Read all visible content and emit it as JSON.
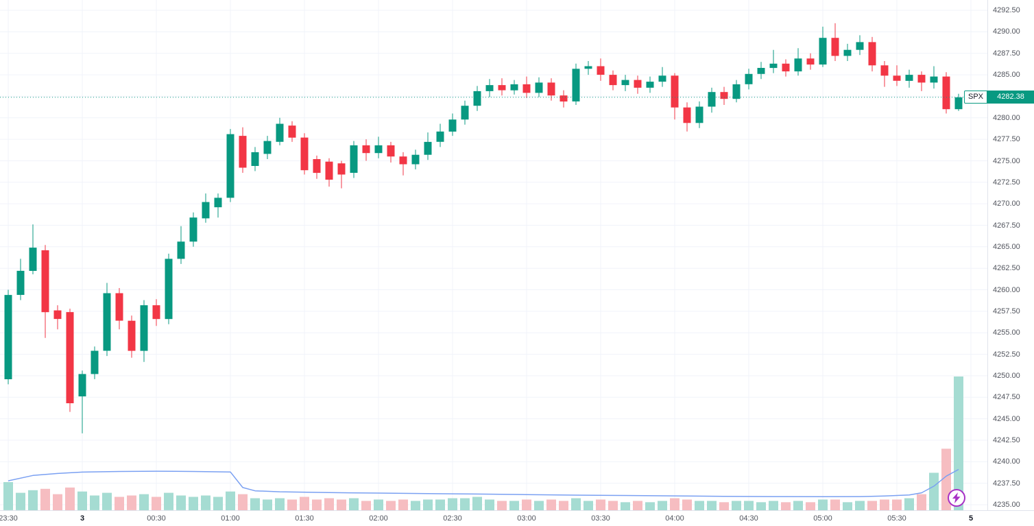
{
  "meta": {
    "symbol": "SPX",
    "last_price_text": "4282.38"
  },
  "price_axis": {
    "labels": [
      "4292.50",
      "4290.00",
      "4287.50",
      "4285.00",
      "4282.50",
      "4280.00",
      "4277.50",
      "4275.00",
      "4272.50",
      "4270.00",
      "4267.50",
      "4265.00",
      "4262.50",
      "4260.00",
      "4257.50",
      "4255.00",
      "4252.50",
      "4250.00",
      "4247.50",
      "4245.00",
      "4242.50",
      "4240.00",
      "4237.50",
      "4235.00"
    ]
  },
  "chart_data": {
    "type": "candlestick",
    "title": "SPX",
    "bar_interval_minutes": 5,
    "ylim": [
      4234.36,
      4293.7
    ],
    "grid": true,
    "price_ticks": [
      4292.5,
      4290,
      4287.5,
      4285,
      4282.5,
      4280,
      4277.5,
      4275,
      4272.5,
      4270,
      4267.5,
      4265,
      4262.5,
      4260,
      4257.5,
      4255,
      4252.5,
      4250,
      4247.5,
      4245,
      4242.5,
      4240,
      4237.5,
      4235
    ],
    "x_labels": [
      {
        "text": "23:30",
        "bar": 0
      },
      {
        "text": "3",
        "bar": 6,
        "strong": true
      },
      {
        "text": "00:30",
        "bar": 12
      },
      {
        "text": "01:00",
        "bar": 18
      },
      {
        "text": "01:30",
        "bar": 24
      },
      {
        "text": "02:00",
        "bar": 30
      },
      {
        "text": "02:30",
        "bar": 36
      },
      {
        "text": "03:00",
        "bar": 42
      },
      {
        "text": "03:30",
        "bar": 48
      },
      {
        "text": "04:00",
        "bar": 54
      },
      {
        "text": "04:30",
        "bar": 60
      },
      {
        "text": "05:00",
        "bar": 66
      },
      {
        "text": "05:30",
        "bar": 72
      },
      {
        "text": "5",
        "bar": 78,
        "strong": true
      }
    ],
    "last_price": 4282.38,
    "candles": [
      [
        "23:30",
        4249.6,
        4260.0,
        4249.0,
        4259.4,
        21
      ],
      [
        "23:35",
        4259.4,
        4263.6,
        4258.8,
        4262.2,
        13
      ],
      [
        "23:40",
        4262.2,
        4267.6,
        4261.8,
        4264.9,
        15
      ],
      [
        "23:45",
        4264.6,
        4265.2,
        4254.4,
        4257.4,
        16
      ],
      [
        "23:50",
        4257.6,
        4258.2,
        4255.4,
        4256.6,
        12
      ],
      [
        "23:55",
        4257.4,
        4257.8,
        4245.8,
        4246.8,
        17
      ],
      [
        "00:00",
        4247.6,
        4250.6,
        4243.3,
        4250.2,
        14
      ],
      [
        "00:05",
        4250.2,
        4253.4,
        4249.6,
        4252.9,
        11
      ],
      [
        "00:10",
        4252.9,
        4260.8,
        4252.3,
        4259.6,
        13
      ],
      [
        "00:15",
        4259.6,
        4260.2,
        4255.4,
        4256.4,
        10
      ],
      [
        "00:20",
        4256.4,
        4257.0,
        4252.1,
        4252.9,
        11
      ],
      [
        "00:25",
        4252.9,
        4258.8,
        4251.6,
        4258.2,
        12
      ],
      [
        "00:30",
        4258.2,
        4258.9,
        4255.8,
        4256.6,
        10
      ],
      [
        "00:35",
        4256.6,
        4264.2,
        4256.0,
        4263.6,
        13
      ],
      [
        "00:40",
        4263.6,
        4267.4,
        4263.0,
        4265.6,
        11
      ],
      [
        "00:45",
        4265.6,
        4269.0,
        4265.0,
        4268.4,
        10
      ],
      [
        "00:50",
        4268.3,
        4271.2,
        4267.8,
        4270.2,
        11
      ],
      [
        "00:55",
        4269.6,
        4271.2,
        4268.4,
        4270.7,
        10
      ],
      [
        "01:00",
        4270.7,
        4278.7,
        4270.2,
        4278.1,
        14
      ],
      [
        "01:05",
        4277.9,
        4278.9,
        4273.6,
        4274.2,
        12
      ],
      [
        "01:10",
        4274.4,
        4276.6,
        4273.8,
        4276.0,
        9
      ],
      [
        "01:15",
        4275.8,
        4277.9,
        4275.2,
        4277.3,
        8
      ],
      [
        "01:20",
        4277.2,
        4280.0,
        4276.8,
        4279.3,
        9
      ],
      [
        "01:25",
        4279.1,
        4279.6,
        4277.2,
        4277.7,
        8
      ],
      [
        "01:30",
        4277.7,
        4278.2,
        4273.4,
        4273.9,
        10
      ],
      [
        "01:35",
        4275.2,
        4275.6,
        4272.9,
        4273.6,
        8
      ],
      [
        "01:40",
        4274.9,
        4275.3,
        4272.0,
        4272.8,
        9
      ],
      [
        "01:45",
        4274.7,
        4275.0,
        4271.8,
        4273.4,
        8
      ],
      [
        "01:50",
        4273.6,
        4277.3,
        4273.0,
        4276.8,
        9
      ],
      [
        "01:55",
        4276.8,
        4277.5,
        4275.0,
        4275.9,
        7
      ],
      [
        "02:00",
        4275.9,
        4277.8,
        4275.3,
        4276.8,
        8
      ],
      [
        "02:05",
        4276.8,
        4277.2,
        4274.8,
        4275.5,
        7
      ],
      [
        "02:10",
        4275.5,
        4276.0,
        4273.3,
        4274.6,
        8
      ],
      [
        "02:15",
        4274.6,
        4276.3,
        4274.0,
        4275.7,
        7
      ],
      [
        "02:20",
        4275.7,
        4278.3,
        4275.1,
        4277.2,
        8
      ],
      [
        "02:25",
        4277.2,
        4279.3,
        4276.6,
        4278.4,
        8
      ],
      [
        "02:30",
        4278.4,
        4280.5,
        4277.9,
        4279.8,
        9
      ],
      [
        "02:35",
        4279.8,
        4282.0,
        4279.2,
        4281.4,
        9
      ],
      [
        "02:40",
        4281.4,
        4283.7,
        4280.8,
        4283.1,
        10
      ],
      [
        "02:45",
        4283.1,
        4284.5,
        4282.4,
        4283.8,
        8
      ],
      [
        "02:50",
        4283.8,
        4284.6,
        4282.6,
        4283.2,
        7
      ],
      [
        "02:55",
        4283.2,
        4284.4,
        4282.7,
        4283.9,
        7
      ],
      [
        "03:00",
        4283.9,
        4284.8,
        4282.3,
        4282.9,
        8
      ],
      [
        "03:05",
        4282.9,
        4284.7,
        4282.4,
        4284.1,
        7
      ],
      [
        "03:10",
        4284.1,
        4284.6,
        4282.0,
        4282.6,
        8
      ],
      [
        "03:15",
        4282.6,
        4283.2,
        4281.2,
        4281.9,
        7
      ],
      [
        "03:20",
        4281.9,
        4286.3,
        4281.5,
        4285.7,
        9
      ],
      [
        "03:25",
        4285.7,
        4286.6,
        4285.0,
        4286.0,
        7
      ],
      [
        "03:30",
        4286.0,
        4286.9,
        4284.3,
        4285.0,
        8
      ],
      [
        "03:35",
        4285.0,
        4285.5,
        4283.2,
        4283.8,
        7
      ],
      [
        "03:40",
        4283.8,
        4285.0,
        4283.1,
        4284.4,
        6
      ],
      [
        "03:45",
        4284.4,
        4284.9,
        4282.8,
        4283.5,
        7
      ],
      [
        "03:50",
        4283.5,
        4284.8,
        4282.9,
        4284.2,
        6
      ],
      [
        "03:55",
        4284.2,
        4285.9,
        4283.6,
        4284.9,
        7
      ],
      [
        "04:00",
        4284.9,
        4285.2,
        4279.8,
        4281.2,
        9
      ],
      [
        "04:05",
        4281.2,
        4281.8,
        4278.4,
        4279.4,
        8
      ],
      [
        "04:10",
        4279.4,
        4281.9,
        4278.8,
        4281.3,
        7
      ],
      [
        "04:15",
        4281.3,
        4283.5,
        4280.6,
        4283.0,
        7
      ],
      [
        "04:20",
        4283.0,
        4283.6,
        4281.5,
        4282.2,
        6
      ],
      [
        "04:25",
        4282.2,
        4284.4,
        4281.8,
        4283.9,
        7
      ],
      [
        "04:30",
        4283.9,
        4285.7,
        4283.3,
        4285.1,
        7
      ],
      [
        "04:35",
        4285.1,
        4286.5,
        4284.5,
        4285.8,
        6
      ],
      [
        "04:40",
        4285.8,
        4287.9,
        4285.2,
        4286.3,
        7
      ],
      [
        "04:45",
        4286.3,
        4286.8,
        4284.8,
        4285.4,
        6
      ],
      [
        "04:50",
        4285.4,
        4288.1,
        4284.9,
        4286.9,
        7
      ],
      [
        "04:55",
        4286.9,
        4287.5,
        4285.6,
        4286.2,
        6
      ],
      [
        "05:00",
        4286.2,
        4290.6,
        4285.9,
        4289.3,
        8
      ],
      [
        "05:05",
        4289.3,
        4291.0,
        4286.6,
        4287.2,
        8
      ],
      [
        "05:10",
        4287.2,
        4288.6,
        4286.6,
        4287.9,
        6
      ],
      [
        "05:15",
        4287.9,
        4289.6,
        4287.3,
        4288.8,
        7
      ],
      [
        "05:20",
        4288.8,
        4289.4,
        4285.4,
        4286.1,
        7
      ],
      [
        "05:25",
        4286.1,
        4286.6,
        4283.6,
        4284.9,
        8
      ],
      [
        "05:30",
        4284.9,
        4286.1,
        4283.7,
        4284.3,
        8
      ],
      [
        "05:35",
        4284.3,
        4285.6,
        4283.5,
        4285.0,
        9
      ],
      [
        "05:40",
        4285.0,
        4285.4,
        4283.1,
        4284.1,
        12
      ],
      [
        "05:45",
        4284.1,
        4286.0,
        4283.4,
        4284.8,
        28
      ],
      [
        "05:50",
        4284.8,
        4285.3,
        4280.5,
        4281.0,
        46
      ],
      [
        "05:55",
        4281.0,
        4282.8,
        4280.8,
        4282.38,
        100
      ]
    ],
    "volume_ma": [
      [
        0,
        22
      ],
      [
        2,
        26
      ],
      [
        4,
        27.5
      ],
      [
        6,
        28.5
      ],
      [
        9,
        29
      ],
      [
        12,
        29.2
      ],
      [
        15,
        29
      ],
      [
        18,
        28.6
      ],
      [
        19,
        17
      ],
      [
        20,
        14.5
      ],
      [
        22,
        13.8
      ],
      [
        26,
        13.2
      ],
      [
        30,
        12.8
      ],
      [
        34,
        12.4
      ],
      [
        38,
        12.1
      ],
      [
        42,
        11.7
      ],
      [
        46,
        11.3
      ],
      [
        50,
        11.0
      ],
      [
        54,
        10.7
      ],
      [
        58,
        10.4
      ],
      [
        62,
        10.2
      ],
      [
        66,
        10.1
      ],
      [
        69,
        10.2
      ],
      [
        71,
        10.6
      ],
      [
        73,
        11.4
      ],
      [
        74,
        13
      ],
      [
        75,
        18
      ],
      [
        76,
        25.5
      ],
      [
        77,
        30.5
      ]
    ],
    "colors": {
      "up": "#089981",
      "down": "#f23645",
      "volume_up": "#a5dcd2",
      "volume_down": "#f6bdc1",
      "volume_ma_line": "#7aa0f2",
      "grid": "#f0f3fa",
      "axis_text": "#51545d",
      "last_price": "#089981",
      "lightning": "#a832c6"
    }
  }
}
